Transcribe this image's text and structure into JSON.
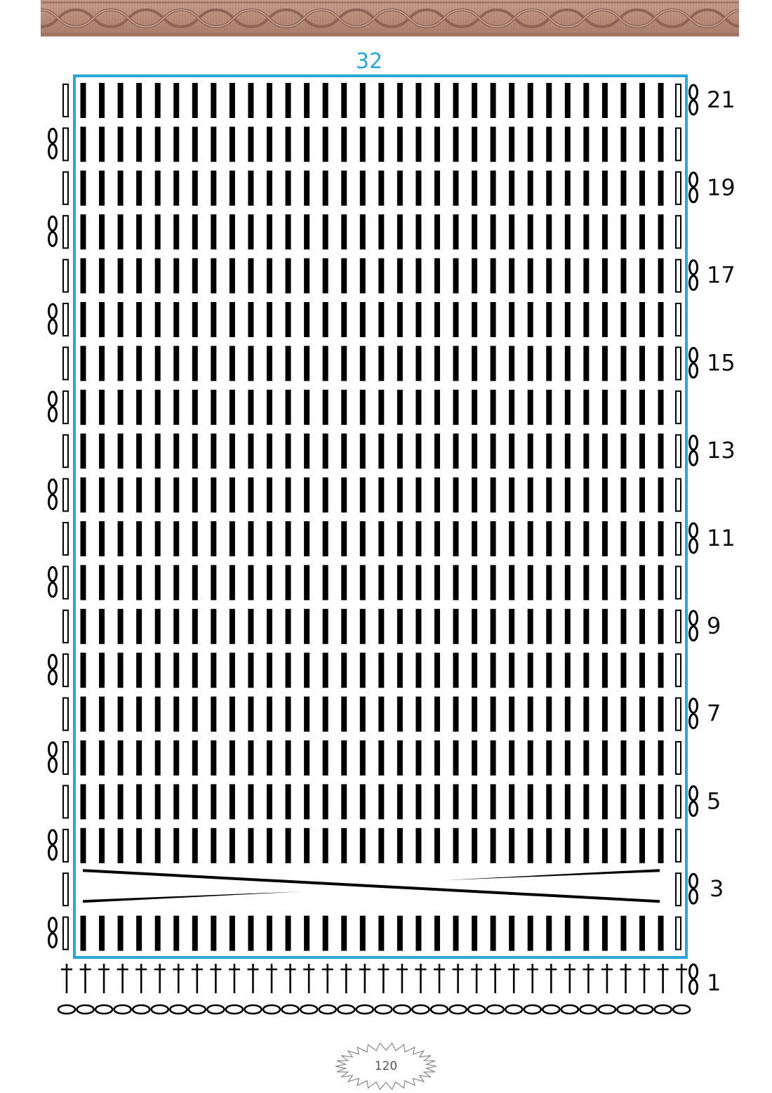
{
  "banner": {
    "icon": "cable-knit-border",
    "color": "#b98c7a"
  },
  "chart": {
    "stitch_count_label": "32",
    "row_labels": [
      "21",
      "19",
      "17",
      "15",
      "13",
      "11",
      "9",
      "7",
      "5",
      "3",
      "1"
    ],
    "frame_color": "#2aa7d6"
  },
  "footer": {
    "page_number": "120",
    "badge_icon": "starburst-badge"
  }
}
